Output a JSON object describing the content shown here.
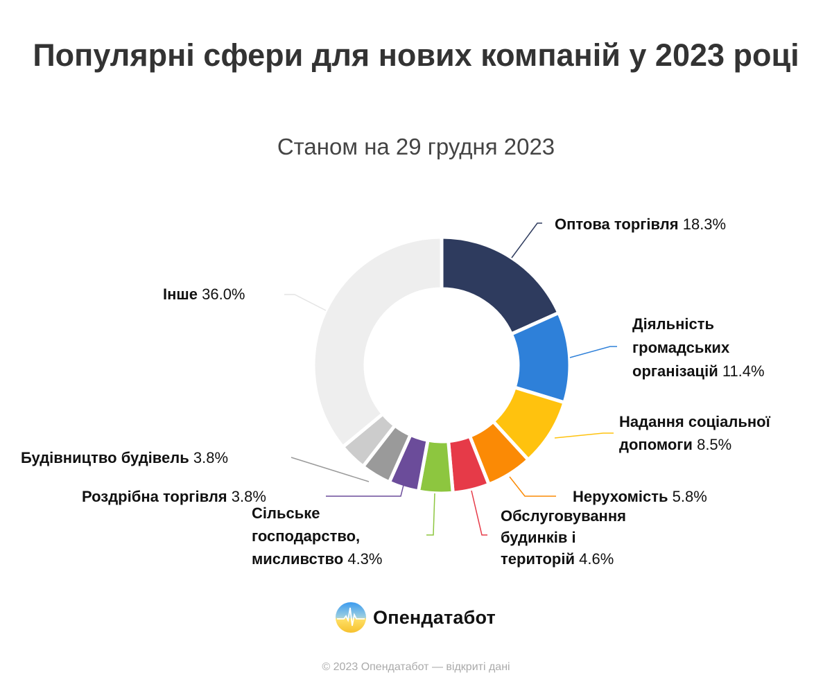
{
  "chart_data": {
    "type": "pie",
    "variant": "donut",
    "title": "Популярні сфери для нових компаній у 2023 році",
    "subtitle": "Станом на 29 грудня 2023",
    "unit": "%",
    "slices": [
      {
        "name": "Оптова торгівля",
        "value": 18.3,
        "value_label": "18.3%",
        "color": "#2e3b5e"
      },
      {
        "name": "Діяльність громадських організацій",
        "value": 11.4,
        "value_label": "11.4%",
        "color": "#2e80d9"
      },
      {
        "name": "Надання соціальної допомоги",
        "value": 8.5,
        "value_label": "8.5%",
        "color": "#ffc20e"
      },
      {
        "name": "Нерухомість",
        "value": 5.8,
        "value_label": "5.8%",
        "color": "#fb8a05"
      },
      {
        "name": "Обслуговування будинків і територій",
        "value": 4.6,
        "value_label": "4.6%",
        "color": "#e63a48"
      },
      {
        "name": "Сільське господарство, мисливство",
        "value": 4.3,
        "value_label": "4.3%",
        "color": "#8dc63f"
      },
      {
        "name": "Роздрібна торгівля",
        "value": 3.8,
        "value_label": "3.8%",
        "color": "#6b4c9a"
      },
      {
        "name": "Будівництво будівель",
        "value": 3.8,
        "value_label": "3.8%",
        "color": "#9a9a9a"
      },
      {
        "name": "",
        "value": 3.5,
        "value_label": "",
        "color": "#cccccc"
      },
      {
        "name": "Інше",
        "value": 36.0,
        "value_label": "36.0%",
        "color": "#eeeeee"
      }
    ],
    "legend": "none (direct labels)"
  },
  "labels": {
    "l0": {
      "line1": "Оптова торгівля"
    },
    "l1": {
      "line1": "Діяльність",
      "line2": "громадських",
      "line3": "організацій"
    },
    "l2": {
      "line1": "Надання соціальної",
      "line2": "допомоги"
    },
    "l3": {
      "line1": "Нерухомість"
    },
    "l4": {
      "line1": "Обслуговування",
      "line2": "будинків і",
      "line3": "територій"
    },
    "l5": {
      "line1": "Сільське",
      "line2": "господарство,",
      "line3": "мисливство"
    },
    "l6": {
      "line1": "Роздрібна торгівля"
    },
    "l7": {
      "line1": "Будівництво будівель"
    },
    "l9": {
      "line1": "Інше"
    }
  },
  "brand": {
    "name": "Опендатабот"
  },
  "footer": "© 2023 Опендатабот — відкриті дані"
}
